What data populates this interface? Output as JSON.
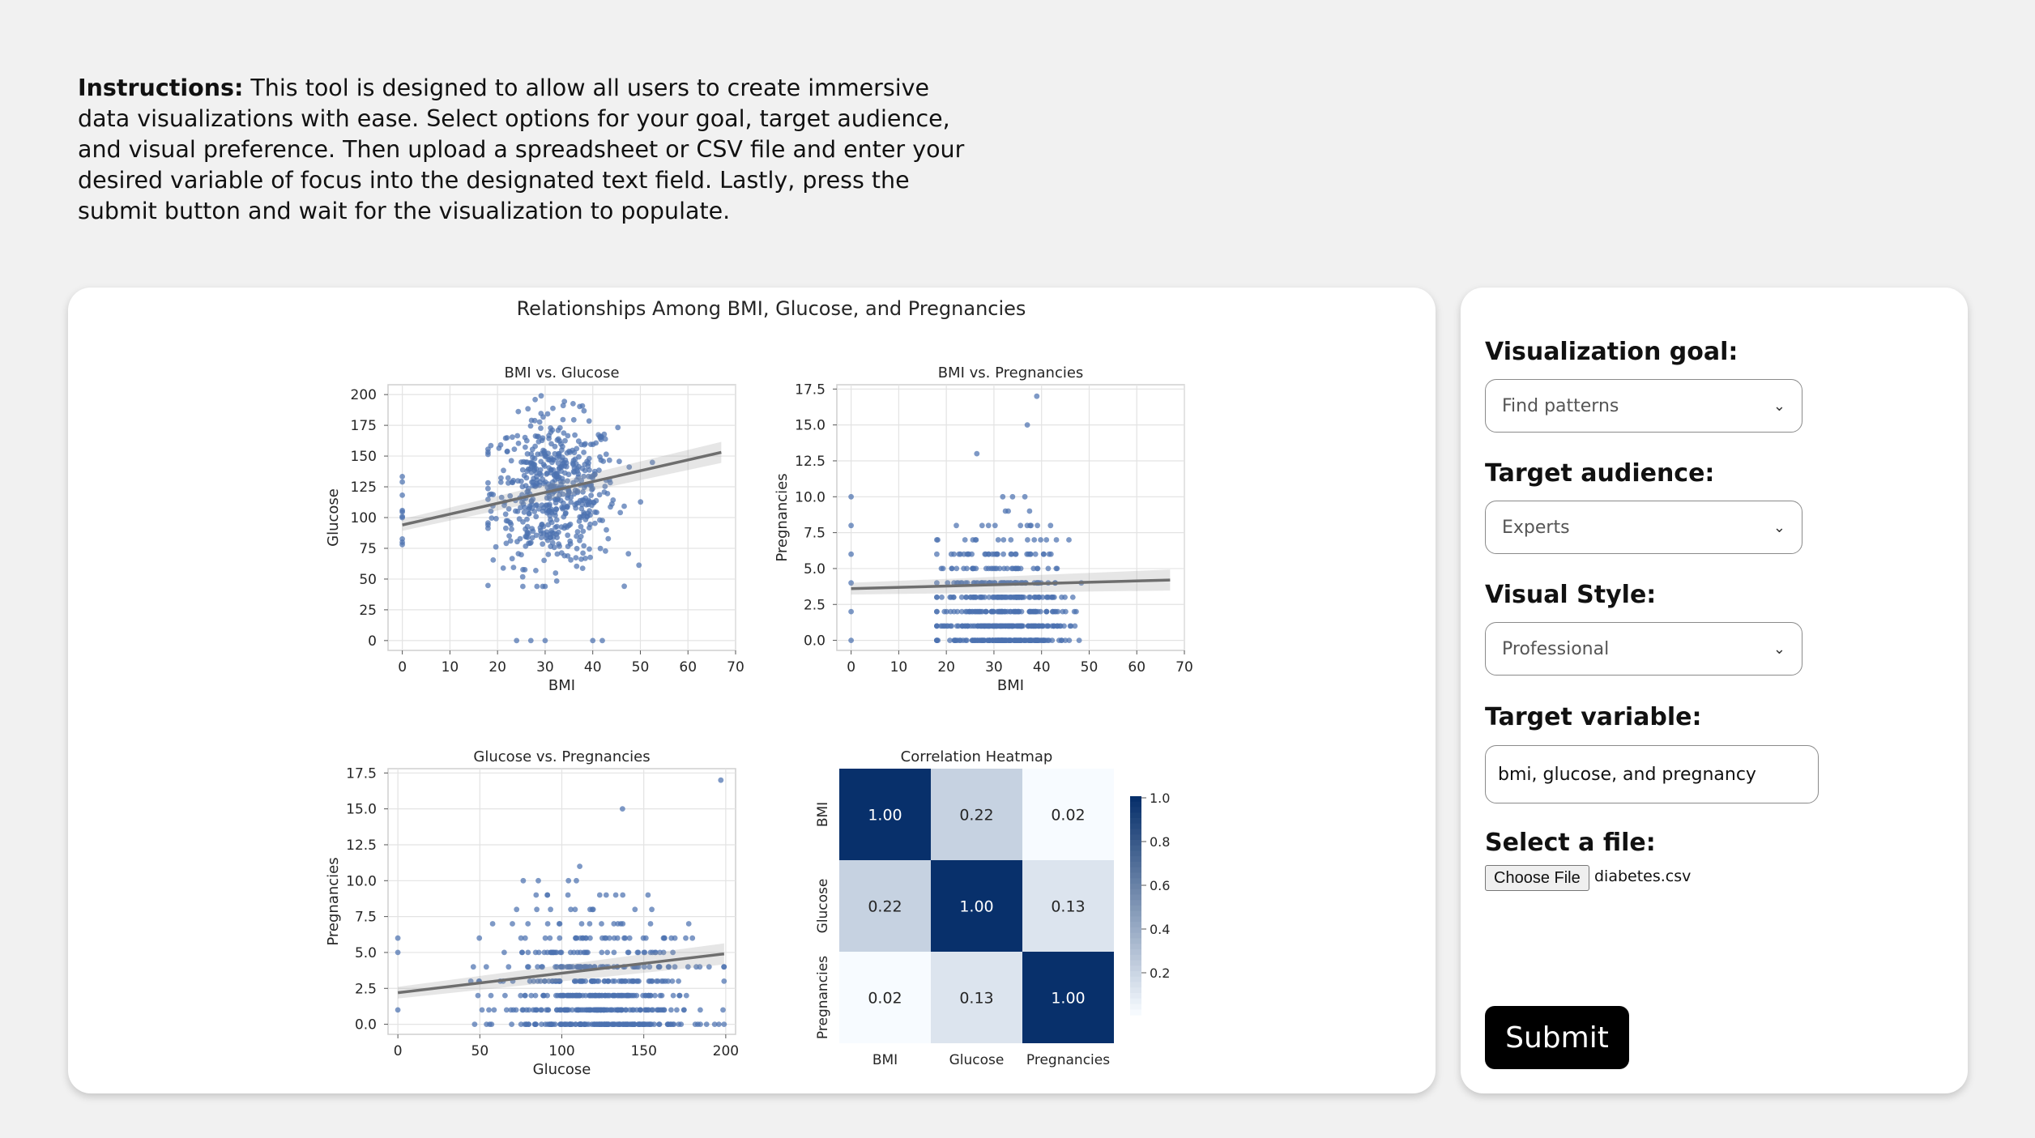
{
  "instructions": {
    "lead": "Instructions:",
    "text": " This tool is designed to allow all users to create immersive data visualizations with ease. Select options for your goal, target audience, and visual preference. Then upload a spreadsheet or CSV file and enter your desired variable of focus into the designated text field. Lastly, press the submit button and wait for the visualization to populate."
  },
  "form": {
    "goal_label": "Visualization goal:",
    "goal_value": "Find patterns",
    "audience_label": "Target audience:",
    "audience_value": "Experts",
    "style_label": "Visual Style:",
    "style_value": "Professional",
    "variable_label": "Target variable:",
    "variable_value": "bmi, glucose, and pregnancy",
    "file_label": "Select a file:",
    "file_button": "Choose File",
    "file_name": "diabetes.csv",
    "submit_label": "Submit"
  },
  "colors": {
    "point": "#4c72b0",
    "regression": "#6e6e6e",
    "heat_high": "#08306b",
    "heat_low": "#f7fbff"
  },
  "chart_data": [
    {
      "type": "scatter",
      "suptitle": "Relationships Among BMI, Glucose, and Pregnancies",
      "title": "BMI vs. Glucose",
      "xlabel": "BMI",
      "ylabel": "Glucose",
      "xlim": [
        -3,
        70
      ],
      "ylim": [
        -8,
        208
      ],
      "xticks": [
        0,
        10,
        20,
        30,
        40,
        50,
        60,
        70
      ],
      "yticks": [
        0,
        25,
        50,
        75,
        100,
        125,
        150,
        175,
        200
      ],
      "regression": [
        [
          0,
          94
        ],
        [
          67,
          153
        ]
      ],
      "grid": true
    },
    {
      "type": "scatter",
      "title": "BMI vs. Pregnancies",
      "xlabel": "BMI",
      "ylabel": "Pregnancies",
      "xlim": [
        -3,
        70
      ],
      "ylim": [
        -0.7,
        17.8
      ],
      "xticks": [
        0,
        10,
        20,
        30,
        40,
        50,
        60,
        70
      ],
      "yticks": [
        "0.0",
        "2.5",
        "5.0",
        "7.5",
        "10.0",
        "12.5",
        "15.0",
        "17.5"
      ],
      "regression": [
        [
          0,
          3.6
        ],
        [
          67,
          4.2
        ]
      ],
      "grid": true
    },
    {
      "type": "scatter",
      "title": "Glucose vs. Pregnancies",
      "xlabel": "Glucose",
      "ylabel": "Pregnancies",
      "xlim": [
        -6,
        206
      ],
      "ylim": [
        -0.7,
        17.8
      ],
      "xticks": [
        0,
        50,
        100,
        150,
        200
      ],
      "yticks": [
        "0.0",
        "2.5",
        "5.0",
        "7.5",
        "10.0",
        "12.5",
        "15.0",
        "17.5"
      ],
      "regression": [
        [
          0,
          2.2
        ],
        [
          199,
          4.9
        ]
      ],
      "grid": true
    },
    {
      "type": "heatmap",
      "title": "Correlation Heatmap",
      "labels": [
        "BMI",
        "Glucose",
        "Pregnancies"
      ],
      "values": [
        [
          1.0,
          0.22,
          0.02
        ],
        [
          0.22,
          1.0,
          0.13
        ],
        [
          0.02,
          0.13,
          1.0
        ]
      ],
      "colorbar_ticks": [
        "1.0",
        "0.8",
        "0.6",
        "0.4",
        "0.2"
      ]
    }
  ]
}
